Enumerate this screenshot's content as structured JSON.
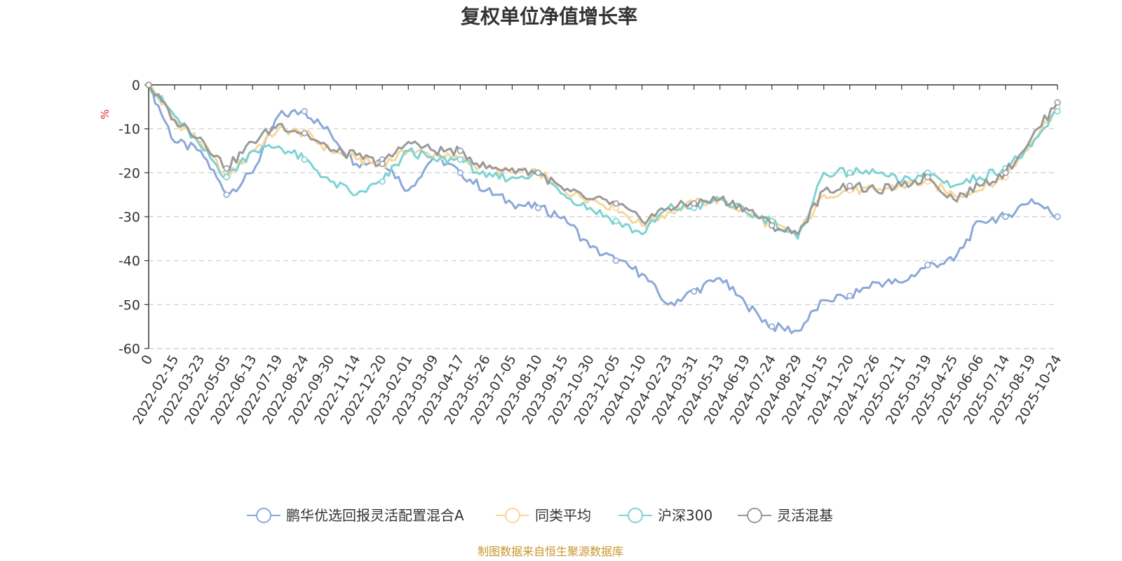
{
  "chart_data": {
    "type": "line",
    "title": "复权单位净值增长率",
    "ylabel": "%",
    "ylim": [
      -60,
      0
    ],
    "yticks": [
      0,
      -10,
      -20,
      -30,
      -40,
      -50,
      -60
    ],
    "x_categories": [
      "0",
      "2022-02-15",
      "2022-03-23",
      "2022-05-05",
      "2022-06-13",
      "2022-07-19",
      "2022-08-24",
      "2022-09-30",
      "2022-11-14",
      "2022-12-20",
      "2023-02-01",
      "2023-03-09",
      "2023-04-17",
      "2023-05-26",
      "2023-07-05",
      "2023-08-10",
      "2023-09-15",
      "2023-10-30",
      "2023-12-05",
      "2024-01-10",
      "2024-02-23",
      "2024-03-31",
      "2024-05-13",
      "2024-06-19",
      "2024-07-24",
      "2024-08-29",
      "2024-10-15",
      "2024-11-20",
      "2024-12-26",
      "2025-02-11",
      "2025-03-19",
      "2025-04-25",
      "2025-06-06",
      "2025-07-14",
      "2025-08-19",
      "2025-10-24"
    ],
    "grid": "horizontal-dashed",
    "legend_position": "bottom",
    "source_note": "制图数据来自恒生聚源数据库",
    "series": [
      {
        "name": "鹏华优选回报灵活配置混合A",
        "color": "#8ca8d8",
        "values": [
          0,
          -13,
          -15,
          -25,
          -20,
          -7,
          -6,
          -11,
          -18,
          -17,
          -24,
          -16,
          -20,
          -24,
          -27,
          -28,
          -30,
          -37,
          -40,
          -43,
          -50,
          -47,
          -44,
          -50,
          -55,
          -56,
          -49,
          -48,
          -45,
          -45,
          -41,
          -40,
          -31,
          -30,
          -26,
          -30
        ]
      },
      {
        "name": "同类平均",
        "color": "#f8d79c",
        "values": [
          0,
          -8,
          -13,
          -21,
          -15,
          -10,
          -11,
          -15,
          -17,
          -18,
          -15,
          -16,
          -17,
          -19,
          -20,
          -20,
          -24,
          -26,
          -28,
          -32,
          -29,
          -27,
          -26,
          -29,
          -32,
          -34,
          -25,
          -24,
          -24,
          -23,
          -22,
          -25,
          -24,
          -21,
          -13,
          -5
        ]
      },
      {
        "name": "沪深300",
        "color": "#7dd3d3",
        "values": [
          0,
          -7,
          -14,
          -21,
          -15,
          -14,
          -17,
          -22,
          -25,
          -22,
          -15,
          -17,
          -17,
          -21,
          -21,
          -20,
          -25,
          -28,
          -31,
          -34,
          -28,
          -28,
          -26,
          -29,
          -31,
          -35,
          -20,
          -20,
          -20,
          -22,
          -20,
          -23,
          -21,
          -19,
          -14,
          -6
        ]
      },
      {
        "name": "灵活混基",
        "color": "#999999",
        "values": [
          0,
          -8,
          -12,
          -19,
          -13,
          -9,
          -11,
          -15,
          -16,
          -18,
          -13,
          -15,
          -15,
          -19,
          -19,
          -20,
          -24,
          -26,
          -27,
          -31,
          -28,
          -27,
          -26,
          -28,
          -32,
          -34,
          -24,
          -23,
          -24,
          -23,
          -21,
          -26,
          -23,
          -20,
          -12,
          -4
        ]
      }
    ]
  }
}
